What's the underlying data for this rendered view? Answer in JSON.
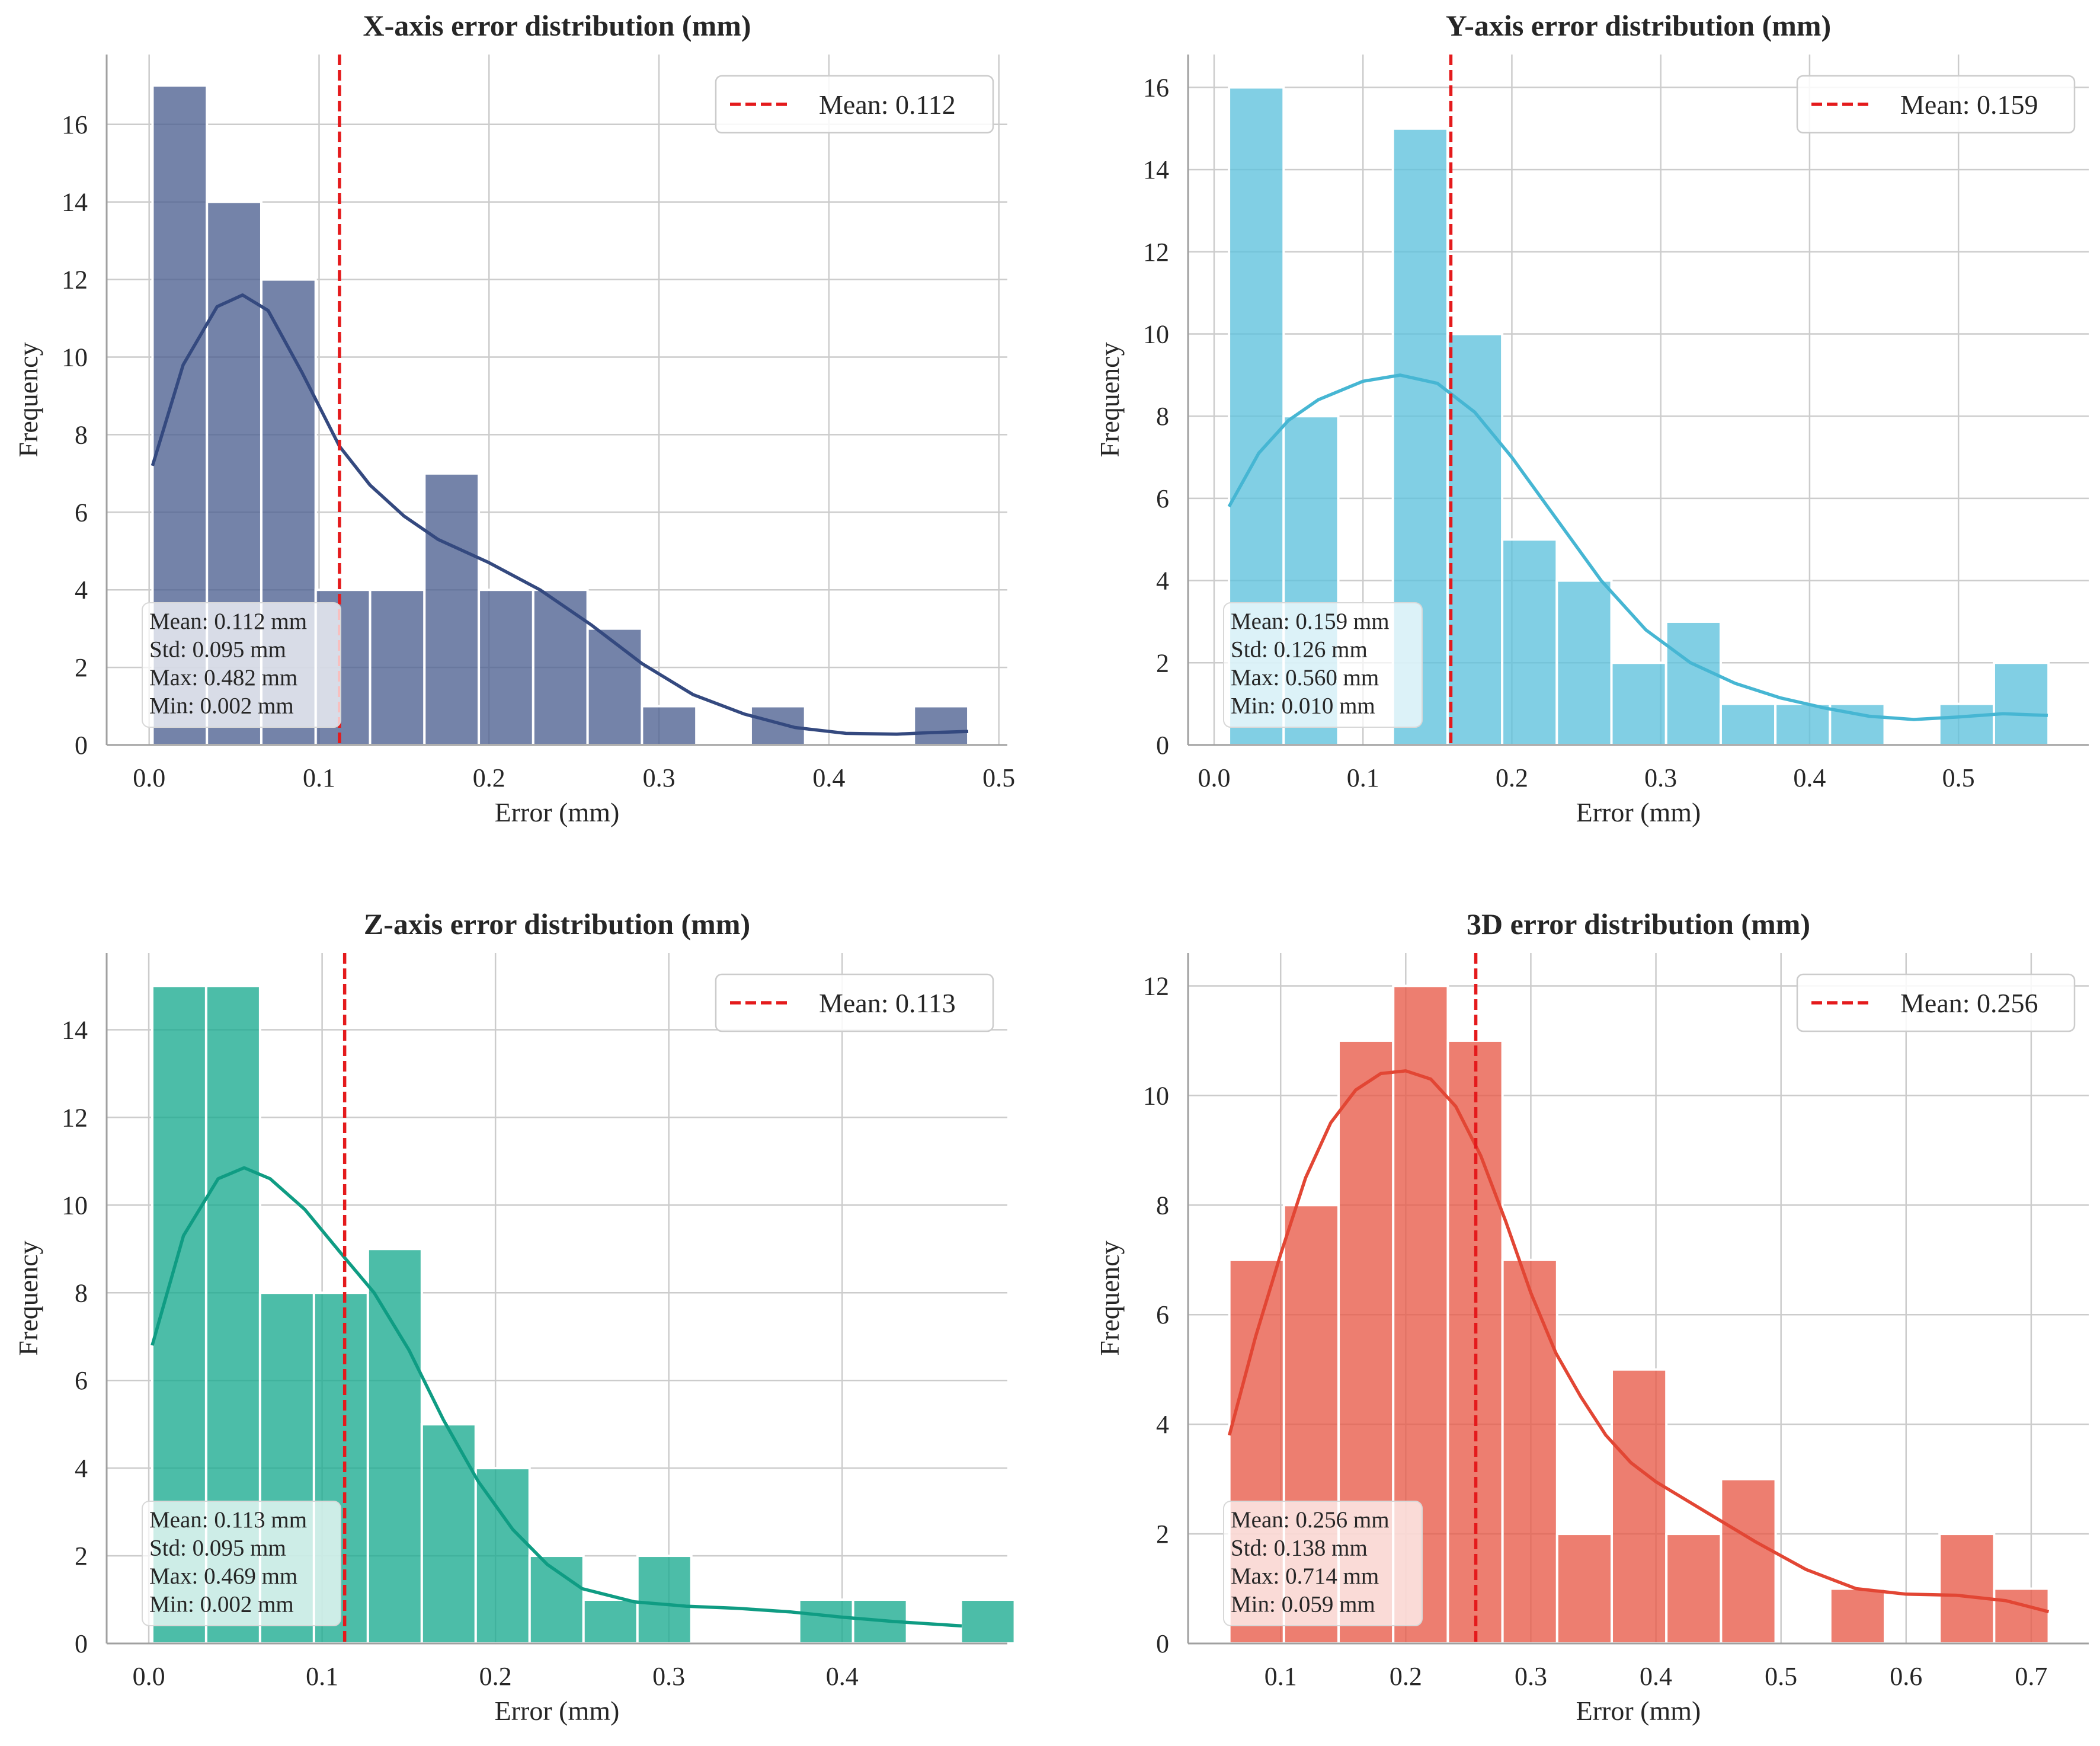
{
  "colors": {
    "mean_line": "#e41a1c",
    "grid": "#cccccc",
    "axis": "#a0a0a0",
    "x_bar": "#4d6091",
    "x_kde": "#34497f",
    "y_bar": "#5ec2dc",
    "y_kde": "#46b6d3",
    "z_bar": "#19aa90",
    "z_kde": "#0f9c83",
    "d3_bar": "#e85a48",
    "d3_kde": "#e24634"
  },
  "chart_data": [
    {
      "type": "histogram",
      "title": "X-axis error distribution (mm)",
      "xlabel": "Error (mm)",
      "ylabel": "Frequency",
      "xlim": [
        -0.025,
        0.505
      ],
      "ylim": [
        0,
        17.8
      ],
      "xticks": [
        0.0,
        0.1,
        0.2,
        0.3,
        0.4,
        0.5
      ],
      "xtick_labels": [
        "0.0",
        "0.1",
        "0.2",
        "0.3",
        "0.4",
        "0.5"
      ],
      "yticks": [
        0,
        2,
        4,
        6,
        8,
        10,
        12,
        14,
        16
      ],
      "ytick_labels": [
        "0",
        "2",
        "4",
        "6",
        "8",
        "10",
        "12",
        "14",
        "16"
      ],
      "bin_start": 0.002,
      "bin_width": 0.032,
      "counts": [
        17,
        14,
        12,
        4,
        4,
        7,
        4,
        4,
        3,
        1,
        0,
        1,
        0,
        0,
        1
      ],
      "kde": [
        [
          0.002,
          7.2
        ],
        [
          0.02,
          9.8
        ],
        [
          0.04,
          11.3
        ],
        [
          0.055,
          11.6
        ],
        [
          0.07,
          11.2
        ],
        [
          0.09,
          9.6
        ],
        [
          0.112,
          7.7
        ],
        [
          0.13,
          6.7
        ],
        [
          0.15,
          5.9
        ],
        [
          0.17,
          5.3
        ],
        [
          0.2,
          4.7
        ],
        [
          0.23,
          4.0
        ],
        [
          0.26,
          3.1
        ],
        [
          0.29,
          2.1
        ],
        [
          0.32,
          1.3
        ],
        [
          0.35,
          0.8
        ],
        [
          0.38,
          0.45
        ],
        [
          0.41,
          0.3
        ],
        [
          0.44,
          0.28
        ],
        [
          0.46,
          0.32
        ],
        [
          0.482,
          0.35
        ]
      ],
      "mean": 0.112,
      "legend": "Mean: 0.112",
      "legend_position": "top-right",
      "stats": [
        "Mean: 0.112 mm",
        "Std: 0.095 mm",
        "Max: 0.482 mm",
        "Min: 0.002 mm"
      ]
    },
    {
      "type": "histogram",
      "title": "Y-axis error distribution (mm)",
      "xlabel": "Error (mm)",
      "ylabel": "Frequency",
      "xlim": [
        -0.0175,
        0.5875
      ],
      "ylim": [
        0,
        16.8
      ],
      "xticks": [
        0.0,
        0.1,
        0.2,
        0.3,
        0.4,
        0.5
      ],
      "xtick_labels": [
        "0.0",
        "0.1",
        "0.2",
        "0.3",
        "0.4",
        "0.5"
      ],
      "yticks": [
        0,
        2,
        4,
        6,
        8,
        10,
        12,
        14,
        16
      ],
      "ytick_labels": [
        "0",
        "2",
        "4",
        "6",
        "8",
        "10",
        "12",
        "14",
        "16"
      ],
      "bin_start": 0.01,
      "bin_width": 0.0367,
      "counts": [
        16,
        8,
        0,
        15,
        10,
        5,
        4,
        2,
        3,
        1,
        1,
        1,
        0,
        1,
        2
      ],
      "kde": [
        [
          0.01,
          5.8
        ],
        [
          0.03,
          7.1
        ],
        [
          0.05,
          7.9
        ],
        [
          0.07,
          8.4
        ],
        [
          0.1,
          8.85
        ],
        [
          0.125,
          9.0
        ],
        [
          0.15,
          8.8
        ],
        [
          0.175,
          8.1
        ],
        [
          0.2,
          7.0
        ],
        [
          0.23,
          5.5
        ],
        [
          0.26,
          4.0
        ],
        [
          0.29,
          2.8
        ],
        [
          0.32,
          2.0
        ],
        [
          0.35,
          1.5
        ],
        [
          0.38,
          1.15
        ],
        [
          0.41,
          0.9
        ],
        [
          0.44,
          0.7
        ],
        [
          0.47,
          0.62
        ],
        [
          0.5,
          0.68
        ],
        [
          0.53,
          0.76
        ],
        [
          0.56,
          0.72
        ]
      ],
      "mean": 0.159,
      "legend": "Mean: 0.159",
      "legend_position": "top-right",
      "stats": [
        "Mean: 0.159 mm",
        "Std: 0.126 mm",
        "Max: 0.560 mm",
        "Min: 0.010 mm"
      ]
    },
    {
      "type": "histogram",
      "title": "Z-axis error distribution (mm)",
      "xlabel": "Error (mm)",
      "ylabel": "Frequency",
      "xlim": [
        -0.0243,
        0.4953
      ],
      "ylim": [
        0,
        15.75
      ],
      "xticks": [
        0.0,
        0.1,
        0.2,
        0.3,
        0.4
      ],
      "xtick_labels": [
        "0.0",
        "0.1",
        "0.2",
        "0.3",
        "0.4"
      ],
      "yticks": [
        0,
        2,
        4,
        6,
        8,
        10,
        12,
        14
      ],
      "ytick_labels": [
        "0",
        "2",
        "4",
        "6",
        "8",
        "10",
        "12",
        "14"
      ],
      "bin_start": 0.002,
      "bin_width": 0.0311,
      "counts": [
        15,
        15,
        8,
        8,
        9,
        5,
        4,
        2,
        1,
        2,
        0,
        0,
        1,
        1,
        0,
        1
      ],
      "kde": [
        [
          0.002,
          6.8
        ],
        [
          0.02,
          9.3
        ],
        [
          0.04,
          10.6
        ],
        [
          0.055,
          10.85
        ],
        [
          0.07,
          10.6
        ],
        [
          0.09,
          9.9
        ],
        [
          0.113,
          8.8
        ],
        [
          0.13,
          8.0
        ],
        [
          0.15,
          6.7
        ],
        [
          0.17,
          5.1
        ],
        [
          0.19,
          3.7
        ],
        [
          0.21,
          2.6
        ],
        [
          0.23,
          1.8
        ],
        [
          0.25,
          1.25
        ],
        [
          0.28,
          0.95
        ],
        [
          0.31,
          0.85
        ],
        [
          0.34,
          0.8
        ],
        [
          0.37,
          0.72
        ],
        [
          0.4,
          0.6
        ],
        [
          0.43,
          0.5
        ],
        [
          0.469,
          0.4
        ]
      ],
      "mean": 0.113,
      "legend": "Mean: 0.113",
      "legend_position": "top-right",
      "stats": [
        "Mean: 0.113 mm",
        "Std: 0.095 mm",
        "Max: 0.469 mm",
        "Min: 0.002 mm"
      ]
    },
    {
      "type": "histogram",
      "title": "3D error distribution (mm)",
      "xlabel": "Error (mm)",
      "ylabel": "Frequency",
      "xlim": [
        0.026,
        0.746
      ],
      "ylim": [
        0,
        12.6
      ],
      "xticks": [
        0.1,
        0.2,
        0.3,
        0.4,
        0.5,
        0.6,
        0.7
      ],
      "xtick_labels": [
        "0.1",
        "0.2",
        "0.3",
        "0.4",
        "0.5",
        "0.6",
        "0.7"
      ],
      "yticks": [
        0,
        2,
        4,
        6,
        8,
        10,
        12
      ],
      "ytick_labels": [
        "0",
        "2",
        "4",
        "6",
        "8",
        "10",
        "12"
      ],
      "bin_start": 0.059,
      "bin_width": 0.04367,
      "counts": [
        7,
        8,
        11,
        12,
        11,
        7,
        2,
        5,
        2,
        3,
        0,
        1,
        0,
        2,
        1
      ],
      "kde": [
        [
          0.059,
          3.8
        ],
        [
          0.08,
          5.6
        ],
        [
          0.1,
          7.1
        ],
        [
          0.12,
          8.5
        ],
        [
          0.14,
          9.5
        ],
        [
          0.16,
          10.1
        ],
        [
          0.18,
          10.4
        ],
        [
          0.2,
          10.45
        ],
        [
          0.22,
          10.3
        ],
        [
          0.24,
          9.8
        ],
        [
          0.26,
          8.9
        ],
        [
          0.28,
          7.7
        ],
        [
          0.3,
          6.4
        ],
        [
          0.32,
          5.3
        ],
        [
          0.34,
          4.5
        ],
        [
          0.36,
          3.8
        ],
        [
          0.38,
          3.3
        ],
        [
          0.4,
          2.95
        ],
        [
          0.44,
          2.4
        ],
        [
          0.48,
          1.85
        ],
        [
          0.52,
          1.35
        ],
        [
          0.56,
          1.0
        ],
        [
          0.6,
          0.9
        ],
        [
          0.64,
          0.88
        ],
        [
          0.68,
          0.78
        ],
        [
          0.714,
          0.58
        ]
      ],
      "mean": 0.256,
      "legend": "Mean: 0.256",
      "legend_position": "top-right",
      "stats": [
        "Mean: 0.256 mm",
        "Std: 0.138 mm",
        "Max: 0.714 mm",
        "Min: 0.059 mm"
      ]
    }
  ]
}
